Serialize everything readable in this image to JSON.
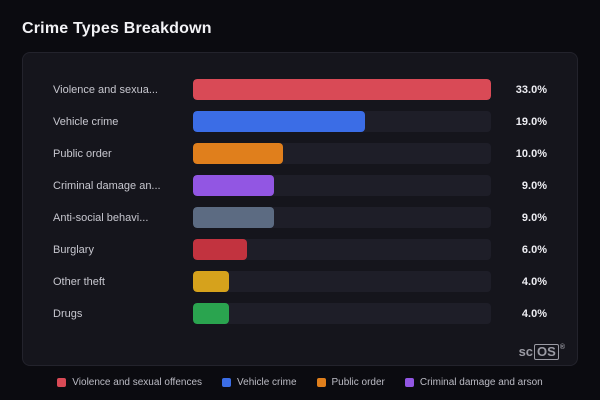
{
  "page": {
    "title": "Crime Types Breakdown"
  },
  "chart_data": {
    "type": "bar",
    "orientation": "horizontal",
    "title": "Crime Types Breakdown",
    "xlim": [
      0,
      33
    ],
    "xmax": 33,
    "categories": [
      "Violence and sexua...",
      "Vehicle crime",
      "Public order",
      "Criminal damage an...",
      "Anti-social behavi...",
      "Burglary",
      "Other theft",
      "Drugs"
    ],
    "values": [
      33.0,
      19.0,
      10.0,
      9.0,
      9.0,
      6.0,
      4.0,
      4.0
    ],
    "rows": [
      {
        "label": "Violence and sexua...",
        "value": 33.0,
        "pct_label": "33.0%",
        "color": "#d94a56"
      },
      {
        "label": "Vehicle crime",
        "value": 19.0,
        "pct_label": "19.0%",
        "color": "#3b6de6"
      },
      {
        "label": "Public order",
        "value": 10.0,
        "pct_label": "10.0%",
        "color": "#e07f1c"
      },
      {
        "label": "Criminal damage an...",
        "value": 9.0,
        "pct_label": "9.0%",
        "color": "#9256e3"
      },
      {
        "label": "Anti-social behavi...",
        "value": 9.0,
        "pct_label": "9.0%",
        "color": "#5c6b82"
      },
      {
        "label": "Burglary",
        "value": 6.0,
        "pct_label": "6.0%",
        "color": "#c2333f"
      },
      {
        "label": "Other theft",
        "value": 4.0,
        "pct_label": "4.0%",
        "color": "#d6a21c"
      },
      {
        "label": "Drugs",
        "value": 4.0,
        "pct_label": "4.0%",
        "color": "#2aa44f"
      }
    ]
  },
  "legend": {
    "items": [
      {
        "label": "Violence and sexual offences",
        "color": "#d94a56"
      },
      {
        "label": "Vehicle crime",
        "color": "#3b6de6"
      },
      {
        "label": "Public order",
        "color": "#e07f1c"
      },
      {
        "label": "Criminal damage and arson",
        "color": "#9256e3"
      }
    ]
  },
  "logo": {
    "prefix": "sc",
    "box": "OS",
    "reg": "®"
  }
}
